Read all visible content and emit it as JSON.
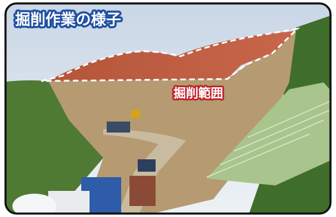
{
  "title": "掘削作業の様子",
  "annotation": "掘削範囲"
}
